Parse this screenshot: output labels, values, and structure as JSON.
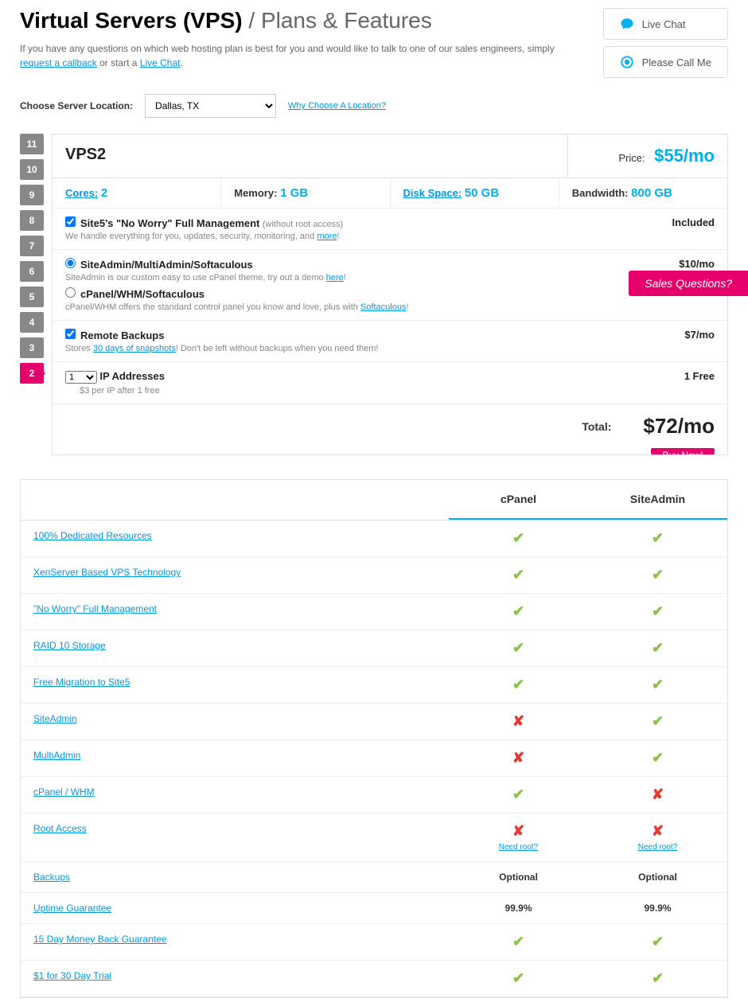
{
  "title_main": "Virtual Servers (VPS)",
  "title_sub": "/ Plans & Features",
  "intro_pre": "If you have any questions on which web hosting plan is best for you and would like to talk to one of our sales engineers, simply ",
  "intro_link1": "request a callback",
  "intro_mid": " or start a ",
  "intro_link2": "Live Chat",
  "intro_end": ".",
  "contact": {
    "live_chat": "Live Chat",
    "call_me": "Please Call Me"
  },
  "location_label": "Choose Server Location:",
  "location_value": "Dallas, TX",
  "location_link": "Why Choose A Location?",
  "steps": [
    "11",
    "10",
    "9",
    "8",
    "7",
    "6",
    "5",
    "4",
    "3",
    "2"
  ],
  "active_step": "2",
  "plan": {
    "name": "VPS2",
    "price_label": "Price:",
    "price": "$55/mo",
    "specs": {
      "cores_label": "Cores:",
      "cores": "2",
      "memory_label": "Memory:",
      "memory": "1 GB",
      "disk_label": "Disk Space:",
      "disk": "50 GB",
      "bw_label": "Bandwidth:",
      "bw": "800 GB"
    },
    "full_mgmt_title": "Site5's \"No Worry\" Full Management",
    "full_mgmt_note": "(without root access)",
    "full_mgmt_desc": "We handle everything for you, updates, security, monitoring, and ",
    "full_mgmt_more": "more",
    "full_mgmt_val": "Included",
    "panel1_title": "SiteAdmin/MultiAdmin/Softaculous",
    "panel1_desc": "SiteAdmin is our custom easy to use cPanel theme, try out a demo ",
    "panel1_link": "here",
    "panel2_title": "cPanel/WHM/Softaculous",
    "panel2_desc": "cPanel/WHM offers the standard control panel you know and love, plus with ",
    "panel2_link": "Softaculous",
    "panel_val": "$10/mo",
    "backup_title": "Remote Backups",
    "backup_desc_pre": "Stores ",
    "backup_link": "30 days of snapshots",
    "backup_desc_post": "! Don't be left without backups when you need them!",
    "backup_val": "$7/mo",
    "ip_value": "1",
    "ip_title": "IP Addresses",
    "ip_desc": "$3 per IP after 1 free",
    "ip_val": "1 Free",
    "total_label": "Total:",
    "total": "$72/mo",
    "buy": "Buy Now!"
  },
  "sales_tab": "Sales Questions?",
  "compare": {
    "col1": "cPanel",
    "col2": "SiteAdmin",
    "rows": [
      {
        "label": "100% Dedicated Resources",
        "a": "check",
        "b": "check"
      },
      {
        "label": "XenServer Based VPS Technology",
        "a": "check",
        "b": "check"
      },
      {
        "label": "\"No Worry\" Full Management",
        "a": "check",
        "b": "check"
      },
      {
        "label": "RAID 10 Storage",
        "a": "check",
        "b": "check"
      },
      {
        "label": "Free Migration to Site5",
        "a": "check",
        "b": "check"
      },
      {
        "label": "SiteAdmin",
        "a": "cross",
        "b": "check"
      },
      {
        "label": "MultiAdmin",
        "a": "cross",
        "b": "check"
      },
      {
        "label": "cPanel / WHM",
        "a": "check",
        "b": "cross"
      },
      {
        "label": "Root Access",
        "a": "cross",
        "b": "cross",
        "sublink": "Need root?"
      },
      {
        "label": "Backups",
        "a": "text",
        "b": "text",
        "at": "Optional",
        "bt": "Optional"
      },
      {
        "label": "Uptime Guarantee",
        "a": "text",
        "b": "text",
        "at": "99.9%",
        "bt": "99.9%"
      },
      {
        "label": "15 Day Money Back Guarantee",
        "a": "check",
        "b": "check"
      },
      {
        "label": "$1 for 30 Day Trial",
        "a": "check",
        "b": "check"
      }
    ]
  }
}
